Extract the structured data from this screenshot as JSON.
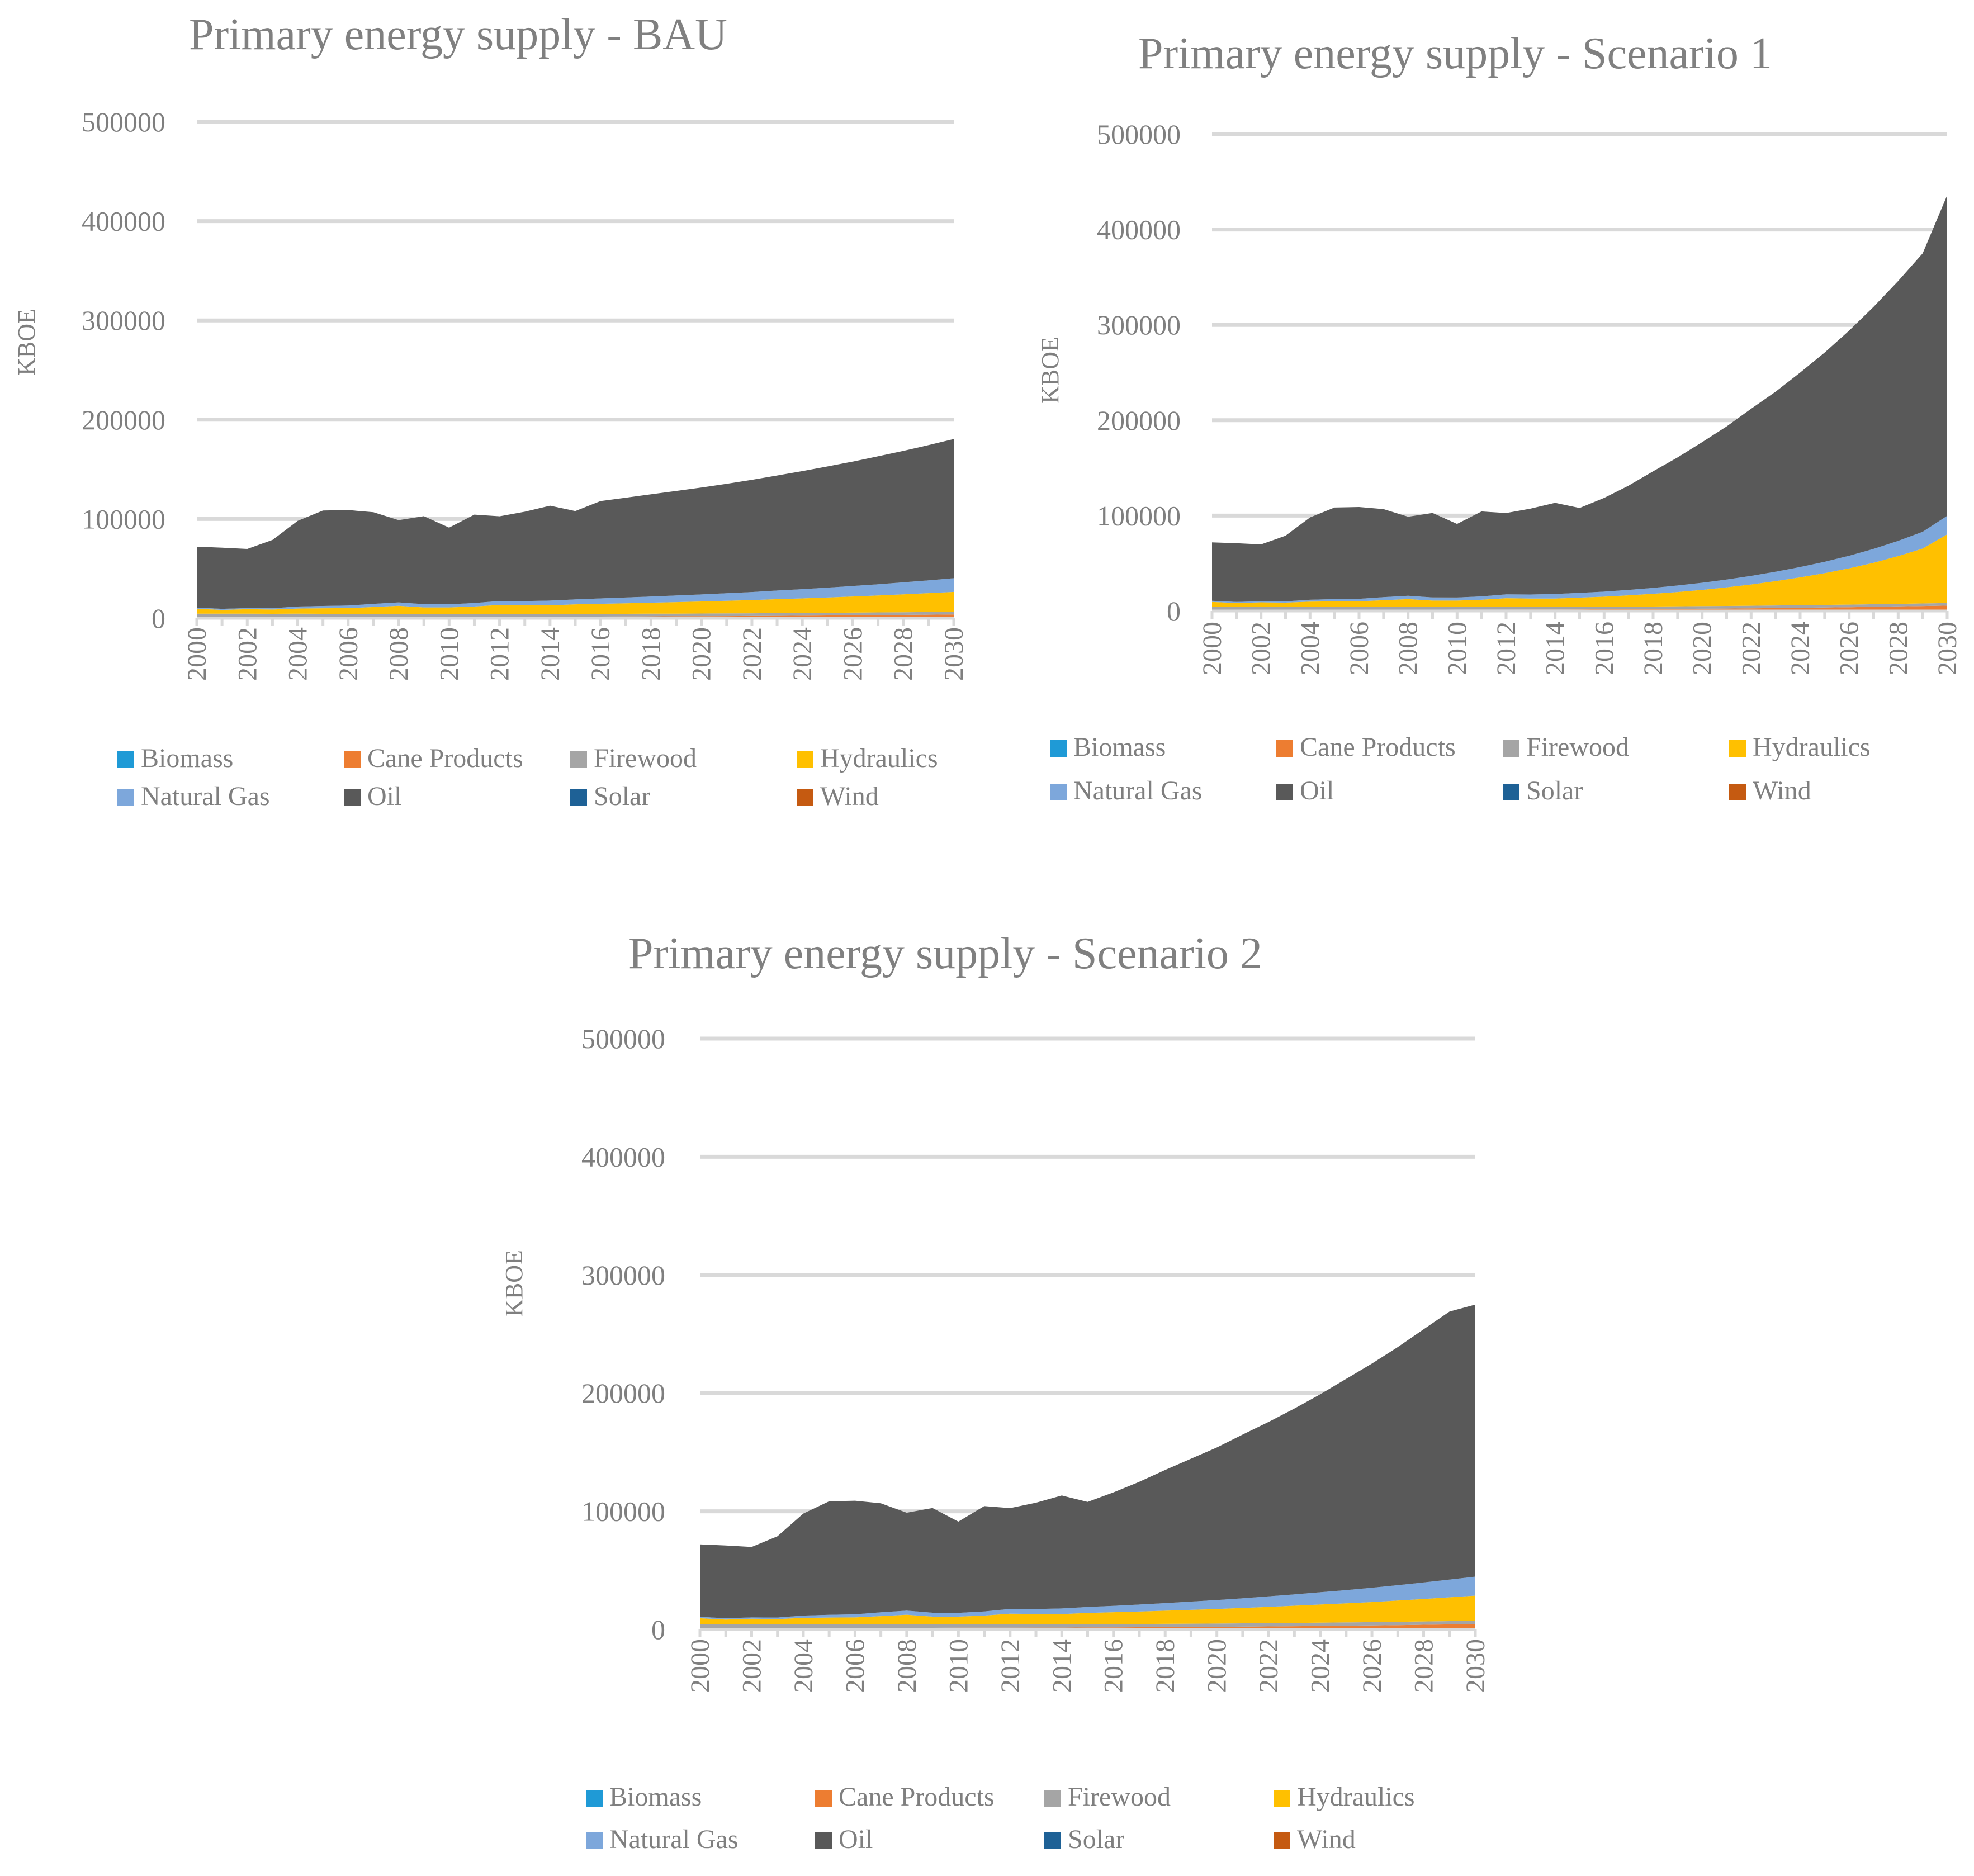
{
  "colors": {
    "Biomass": "#1f9ad6",
    "Cane Products": "#ed7d31",
    "Firewood": "#a5a5a5",
    "Hydraulics": "#ffc000",
    "Natural Gas": "#7da7db",
    "Oil": "#595959",
    "Solar": "#1e6196",
    "Wind": "#c55a11"
  },
  "chart_data": [
    {
      "id": "bau",
      "type": "area",
      "stacked": true,
      "title": "Primary energy supply - BAU",
      "ylabel": "KBOE",
      "xlabel": "",
      "ylim": [
        0,
        500000
      ],
      "yticks": [
        "0",
        "100000",
        "200000",
        "300000",
        "400000",
        "500000"
      ],
      "xticks": [
        "2000",
        "2002",
        "2004",
        "2006",
        "2008",
        "2010",
        "2012",
        "2014",
        "2016",
        "2018",
        "2020",
        "2022",
        "2024",
        "2026",
        "2028",
        "2030"
      ],
      "legend": [
        "Biomass",
        "Cane Products",
        "Firewood",
        "Hydraulics",
        "Natural Gas",
        "Oil",
        "Solar",
        "Wind"
      ],
      "x_start": 2000,
      "series": [
        {
          "name": "Biomass",
          "values": [
            0,
            0,
            0,
            0,
            0,
            0,
            0,
            0,
            0,
            0,
            0,
            0,
            0,
            0,
            0,
            0,
            0,
            0,
            0,
            0,
            0,
            0,
            0,
            0,
            0,
            0,
            0,
            0,
            0,
            0,
            0
          ]
        },
        {
          "name": "Cane Products",
          "values": [
            1200,
            1200,
            1200,
            1200,
            1300,
            1300,
            1300,
            1400,
            1400,
            1400,
            1500,
            1500,
            1500,
            1600,
            1600,
            1700,
            1700,
            1800,
            1900,
            2000,
            2100,
            2200,
            2300,
            2500,
            2600,
            2800,
            3000,
            3200,
            3400,
            3600,
            3800
          ]
        },
        {
          "name": "Firewood",
          "values": [
            3500,
            3400,
            3400,
            3300,
            3300,
            3200,
            3200,
            3100,
            3100,
            3000,
            3000,
            2900,
            2900,
            2800,
            2800,
            2800,
            2700,
            2700,
            2700,
            2700,
            2700,
            2700,
            2700,
            2700,
            2700,
            2700,
            2700,
            2700,
            2700,
            2700,
            2700
          ]
        },
        {
          "name": "Hydraulics",
          "values": [
            4800,
            3800,
            4500,
            4300,
            5200,
            5600,
            5700,
            6800,
            8000,
            6500,
            6400,
            7400,
            9000,
            8700,
            8600,
            9500,
            10200,
            10600,
            11100,
            11600,
            12100,
            12700,
            13300,
            14000,
            14700,
            15400,
            16200,
            17000,
            18000,
            19000,
            20000
          ]
        },
        {
          "name": "Natural Gas",
          "values": [
            1200,
            1100,
            1100,
            1300,
            2000,
            2300,
            2600,
            3200,
            3500,
            3300,
            3200,
            3500,
            4000,
            4200,
            4800,
            5000,
            5400,
            5800,
            6200,
            6600,
            7100,
            7600,
            8100,
            8700,
            9300,
            9900,
            10600,
            11300,
            12100,
            12900,
            13800
          ]
        },
        {
          "name": "Oil",
          "values": [
            61300,
            61600,
            59600,
            68800,
            86300,
            96100,
            96200,
            92300,
            82800,
            88600,
            77200,
            89100,
            85300,
            90000,
            95600,
            89000,
            98000,
            100500,
            103000,
            105300,
            107700,
            110200,
            113000,
            115900,
            118900,
            122100,
            125300,
            128900,
            132400,
            136200,
            140200
          ]
        },
        {
          "name": "Solar",
          "values": [
            0,
            0,
            0,
            0,
            0,
            0,
            0,
            0,
            0,
            0,
            0,
            0,
            0,
            0,
            0,
            0,
            0,
            0,
            0,
            0,
            0,
            0,
            0,
            0,
            0,
            0,
            0,
            0,
            0,
            0,
            0
          ]
        },
        {
          "name": "Wind",
          "values": [
            0,
            0,
            0,
            0,
            0,
            0,
            0,
            0,
            0,
            0,
            0,
            0,
            0,
            0,
            0,
            0,
            0,
            0,
            0,
            0,
            0,
            0,
            0,
            0,
            0,
            0,
            0,
            0,
            0,
            0,
            0
          ]
        }
      ]
    },
    {
      "id": "s1",
      "type": "area",
      "stacked": true,
      "title": "Primary energy supply - Scenario 1",
      "ylabel": "KBOE",
      "xlabel": "",
      "ylim": [
        0,
        500000
      ],
      "yticks": [
        "0",
        "100000",
        "200000",
        "300000",
        "400000",
        "500000"
      ],
      "xticks": [
        "2000",
        "2002",
        "2004",
        "2006",
        "2008",
        "2010",
        "2012",
        "2014",
        "2016",
        "2018",
        "2020",
        "2022",
        "2024",
        "2026",
        "2028",
        "2030"
      ],
      "legend": [
        "Biomass",
        "Cane Products",
        "Firewood",
        "Hydraulics",
        "Natural Gas",
        "Oil",
        "Solar",
        "Wind"
      ],
      "x_start": 2000,
      "series": [
        {
          "name": "Biomass",
          "values": [
            0,
            0,
            0,
            0,
            0,
            0,
            0,
            0,
            0,
            0,
            0,
            0,
            0,
            0,
            0,
            0,
            0,
            0,
            0,
            0,
            0,
            0,
            0,
            0,
            0,
            0,
            0,
            0,
            0,
            0,
            0
          ]
        },
        {
          "name": "Cane Products",
          "values": [
            1200,
            1200,
            1200,
            1200,
            1300,
            1300,
            1300,
            1400,
            1400,
            1400,
            1500,
            1500,
            1500,
            1600,
            1600,
            1700,
            1800,
            1900,
            2000,
            2200,
            2400,
            2600,
            2800,
            3100,
            3400,
            3700,
            4000,
            4400,
            4800,
            5200,
            5600
          ]
        },
        {
          "name": "Firewood",
          "values": [
            3500,
            3400,
            3400,
            3300,
            3300,
            3200,
            3200,
            3100,
            3100,
            3000,
            3000,
            2900,
            2900,
            2800,
            2800,
            2800,
            2700,
            2700,
            2700,
            2700,
            2700,
            2700,
            2700,
            2700,
            2700,
            2700,
            2700,
            2700,
            2700,
            2700,
            2700
          ]
        },
        {
          "name": "Hydraulics",
          "values": [
            4800,
            3800,
            4500,
            4300,
            5200,
            5600,
            5700,
            6800,
            8000,
            6500,
            6400,
            7400,
            9000,
            8700,
            8600,
            9500,
            10500,
            11800,
            13300,
            15000,
            17000,
            19500,
            22300,
            25500,
            29100,
            33200,
            38000,
            43500,
            50000,
            57500,
            72000
          ]
        },
        {
          "name": "Natural Gas",
          "values": [
            1200,
            1100,
            1100,
            1300,
            2000,
            2300,
            2600,
            3200,
            3500,
            3300,
            3200,
            3500,
            4000,
            4200,
            4800,
            5000,
            5300,
            5700,
            6200,
            6800,
            7500,
            8200,
            9000,
            9900,
            10900,
            12000,
            13200,
            14500,
            16000,
            17600,
            19500
          ]
        },
        {
          "name": "Oil",
          "values": [
            61300,
            61600,
            59600,
            68800,
            86300,
            96100,
            96200,
            92300,
            82800,
            88600,
            77200,
            89100,
            85300,
            90000,
            95600,
            89000,
            98200,
            109400,
            122300,
            134300,
            147400,
            160500,
            175200,
            188800,
            203900,
            219400,
            236100,
            253900,
            272500,
            292000,
            336200
          ]
        },
        {
          "name": "Solar",
          "values": [
            0,
            0,
            0,
            0,
            0,
            0,
            0,
            0,
            0,
            0,
            0,
            0,
            0,
            0,
            0,
            0,
            0,
            0,
            0,
            0,
            0,
            0,
            0,
            0,
            0,
            0,
            0,
            0,
            0,
            0,
            0
          ]
        },
        {
          "name": "Wind",
          "values": [
            0,
            0,
            0,
            0,
            0,
            0,
            0,
            0,
            0,
            0,
            0,
            0,
            0,
            0,
            0,
            0,
            0,
            0,
            0,
            0,
            0,
            0,
            0,
            0,
            0,
            0,
            0,
            0,
            0,
            0,
            0
          ]
        }
      ]
    },
    {
      "id": "s2",
      "type": "area",
      "stacked": true,
      "title": "Primary energy supply - Scenario 2",
      "ylabel": "KBOE",
      "xlabel": "",
      "ylim": [
        0,
        500000
      ],
      "yticks": [
        "0",
        "100000",
        "200000",
        "300000",
        "400000",
        "500000"
      ],
      "xticks": [
        "2000",
        "2002",
        "2004",
        "2006",
        "2008",
        "2010",
        "2012",
        "2014",
        "2016",
        "2018",
        "2020",
        "2022",
        "2024",
        "2026",
        "2028",
        "2030"
      ],
      "legend": [
        "Biomass",
        "Cane Products",
        "Firewood",
        "Hydraulics",
        "Natural Gas",
        "Oil",
        "Solar",
        "Wind"
      ],
      "x_start": 2000,
      "series": [
        {
          "name": "Biomass",
          "values": [
            0,
            0,
            0,
            0,
            0,
            0,
            0,
            0,
            0,
            0,
            0,
            0,
            0,
            0,
            0,
            0,
            0,
            0,
            0,
            0,
            0,
            0,
            0,
            0,
            0,
            0,
            0,
            0,
            0,
            0,
            0
          ]
        },
        {
          "name": "Cane Products",
          "values": [
            1200,
            1200,
            1200,
            1200,
            1300,
            1300,
            1300,
            1400,
            1400,
            1400,
            1500,
            1500,
            1500,
            1600,
            1600,
            1700,
            1800,
            1900,
            2000,
            2100,
            2200,
            2400,
            2600,
            2800,
            3000,
            3200,
            3400,
            3700,
            4000,
            4300,
            4600
          ]
        },
        {
          "name": "Firewood",
          "values": [
            3500,
            3400,
            3400,
            3300,
            3300,
            3200,
            3200,
            3100,
            3100,
            3000,
            3000,
            2900,
            2900,
            2800,
            2800,
            2800,
            2800,
            2800,
            2800,
            2800,
            2800,
            2800,
            2800,
            2800,
            2800,
            2800,
            2800,
            2800,
            2800,
            2800,
            2800
          ]
        },
        {
          "name": "Hydraulics",
          "values": [
            4800,
            3800,
            4500,
            4300,
            5200,
            5600,
            5700,
            6800,
            8000,
            6500,
            6400,
            7400,
            9000,
            8700,
            8600,
            9500,
            10000,
            10500,
            11100,
            11700,
            12300,
            13000,
            13700,
            14500,
            15300,
            16100,
            17000,
            18000,
            19000,
            20100,
            21200
          ]
        },
        {
          "name": "Natural Gas",
          "values": [
            1200,
            1100,
            1100,
            1300,
            2000,
            2300,
            2600,
            3200,
            3500,
            3300,
            3200,
            3500,
            4000,
            4200,
            4800,
            5000,
            5400,
            5900,
            6400,
            7000,
            7600,
            8200,
            8900,
            9600,
            10400,
            11200,
            12100,
            13000,
            14000,
            15000,
            16100
          ]
        },
        {
          "name": "Oil",
          "values": [
            61300,
            61600,
            59600,
            68800,
            86300,
            96100,
            96200,
            92300,
            82800,
            88600,
            77200,
            89100,
            85300,
            90000,
            95600,
            89000,
            96000,
            103900,
            112700,
            120900,
            129100,
            138600,
            147600,
            157300,
            167500,
            178700,
            189700,
            201500,
            214200,
            226800,
            230300
          ]
        },
        {
          "name": "Solar",
          "values": [
            0,
            0,
            0,
            0,
            0,
            0,
            0,
            0,
            0,
            0,
            0,
            0,
            0,
            0,
            0,
            0,
            0,
            0,
            0,
            0,
            0,
            0,
            0,
            0,
            0,
            0,
            0,
            0,
            0,
            0,
            0
          ]
        },
        {
          "name": "Wind",
          "values": [
            0,
            0,
            0,
            0,
            0,
            0,
            0,
            0,
            0,
            0,
            0,
            0,
            0,
            0,
            0,
            0,
            0,
            0,
            0,
            0,
            0,
            0,
            0,
            0,
            0,
            0,
            0,
            0,
            0,
            0,
            0
          ]
        }
      ]
    }
  ]
}
